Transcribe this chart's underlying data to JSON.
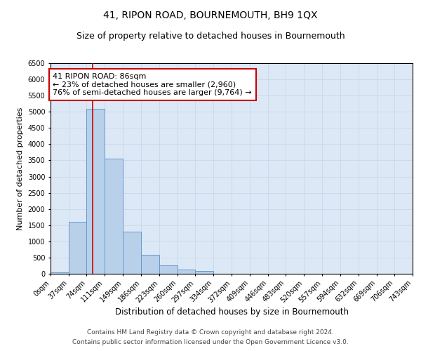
{
  "title": "41, RIPON ROAD, BOURNEMOUTH, BH9 1QX",
  "subtitle": "Size of property relative to detached houses in Bournemouth",
  "xlabel": "Distribution of detached houses by size in Bournemouth",
  "ylabel": "Number of detached properties",
  "footer_line1": "Contains HM Land Registry data © Crown copyright and database right 2024.",
  "footer_line2": "Contains public sector information licensed under the Open Government Licence v3.0.",
  "bin_edges": [
    0,
    37,
    74,
    111,
    149,
    186,
    223,
    260,
    297,
    334,
    372,
    409,
    446,
    483,
    520,
    557,
    594,
    632,
    669,
    706,
    743
  ],
  "bin_labels": [
    "0sqm",
    "37sqm",
    "74sqm",
    "111sqm",
    "149sqm",
    "186sqm",
    "223sqm",
    "260sqm",
    "297sqm",
    "334sqm",
    "372sqm",
    "409sqm",
    "446sqm",
    "483sqm",
    "520sqm",
    "557sqm",
    "594sqm",
    "632sqm",
    "669sqm",
    "706sqm",
    "743sqm"
  ],
  "bar_heights": [
    50,
    1600,
    5100,
    3550,
    1300,
    580,
    270,
    130,
    80,
    0,
    0,
    0,
    0,
    0,
    0,
    0,
    0,
    0,
    0,
    0
  ],
  "bar_color": "#b8d0ea",
  "bar_edge_color": "#6699cc",
  "red_line_x": 86,
  "ylim": [
    0,
    6500
  ],
  "yticks": [
    0,
    500,
    1000,
    1500,
    2000,
    2500,
    3000,
    3500,
    4000,
    4500,
    5000,
    5500,
    6000,
    6500
  ],
  "annotation_text": "41 RIPON ROAD: 86sqm\n← 23% of detached houses are smaller (2,960)\n76% of semi-detached houses are larger (9,764) →",
  "annotation_box_color": "#ffffff",
  "annotation_border_color": "#cc0000",
  "grid_color": "#c8d8e8",
  "background_color": "#dce8f5",
  "title_fontsize": 10,
  "subtitle_fontsize": 9,
  "tick_fontsize": 7,
  "ylabel_fontsize": 8,
  "xlabel_fontsize": 8.5,
  "annotation_fontsize": 8,
  "footer_fontsize": 6.5
}
